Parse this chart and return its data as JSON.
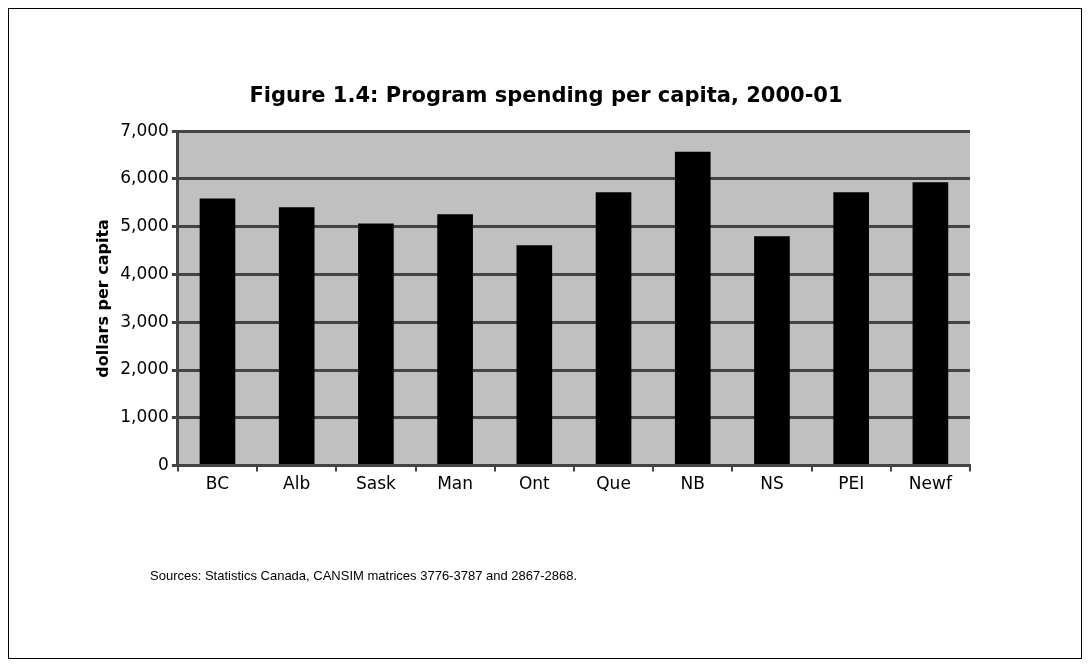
{
  "chart_data": {
    "type": "bar",
    "title": "Figure 1.4:  Program spending per capita, 2000-01",
    "ylabel": "dollars per capita",
    "categories": [
      "BC",
      "Alb",
      "Sask",
      "Man",
      "Ont",
      "Que",
      "NB",
      "NS",
      "PEI",
      "Newf"
    ],
    "values": [
      5590,
      5410,
      5070,
      5260,
      4610,
      5720,
      6570,
      4800,
      5720,
      5930
    ],
    "color": "#000000",
    "ylim": [
      0,
      7000
    ],
    "yticks": [
      {
        "value": 0,
        "label": "0"
      },
      {
        "value": 1000,
        "label": "1,000"
      },
      {
        "value": 2000,
        "label": "2,000"
      },
      {
        "value": 3000,
        "label": "3,000"
      },
      {
        "value": 4000,
        "label": "4,000"
      },
      {
        "value": 5000,
        "label": "5,000"
      },
      {
        "value": 6000,
        "label": "6,000"
      },
      {
        "value": 7000,
        "label": "7,000"
      }
    ],
    "grid": "y",
    "legend": false,
    "annotations": [
      "Sources:  Statistics Canada, CANSIM matrices 3776-3787 and 2867-2868."
    ]
  }
}
